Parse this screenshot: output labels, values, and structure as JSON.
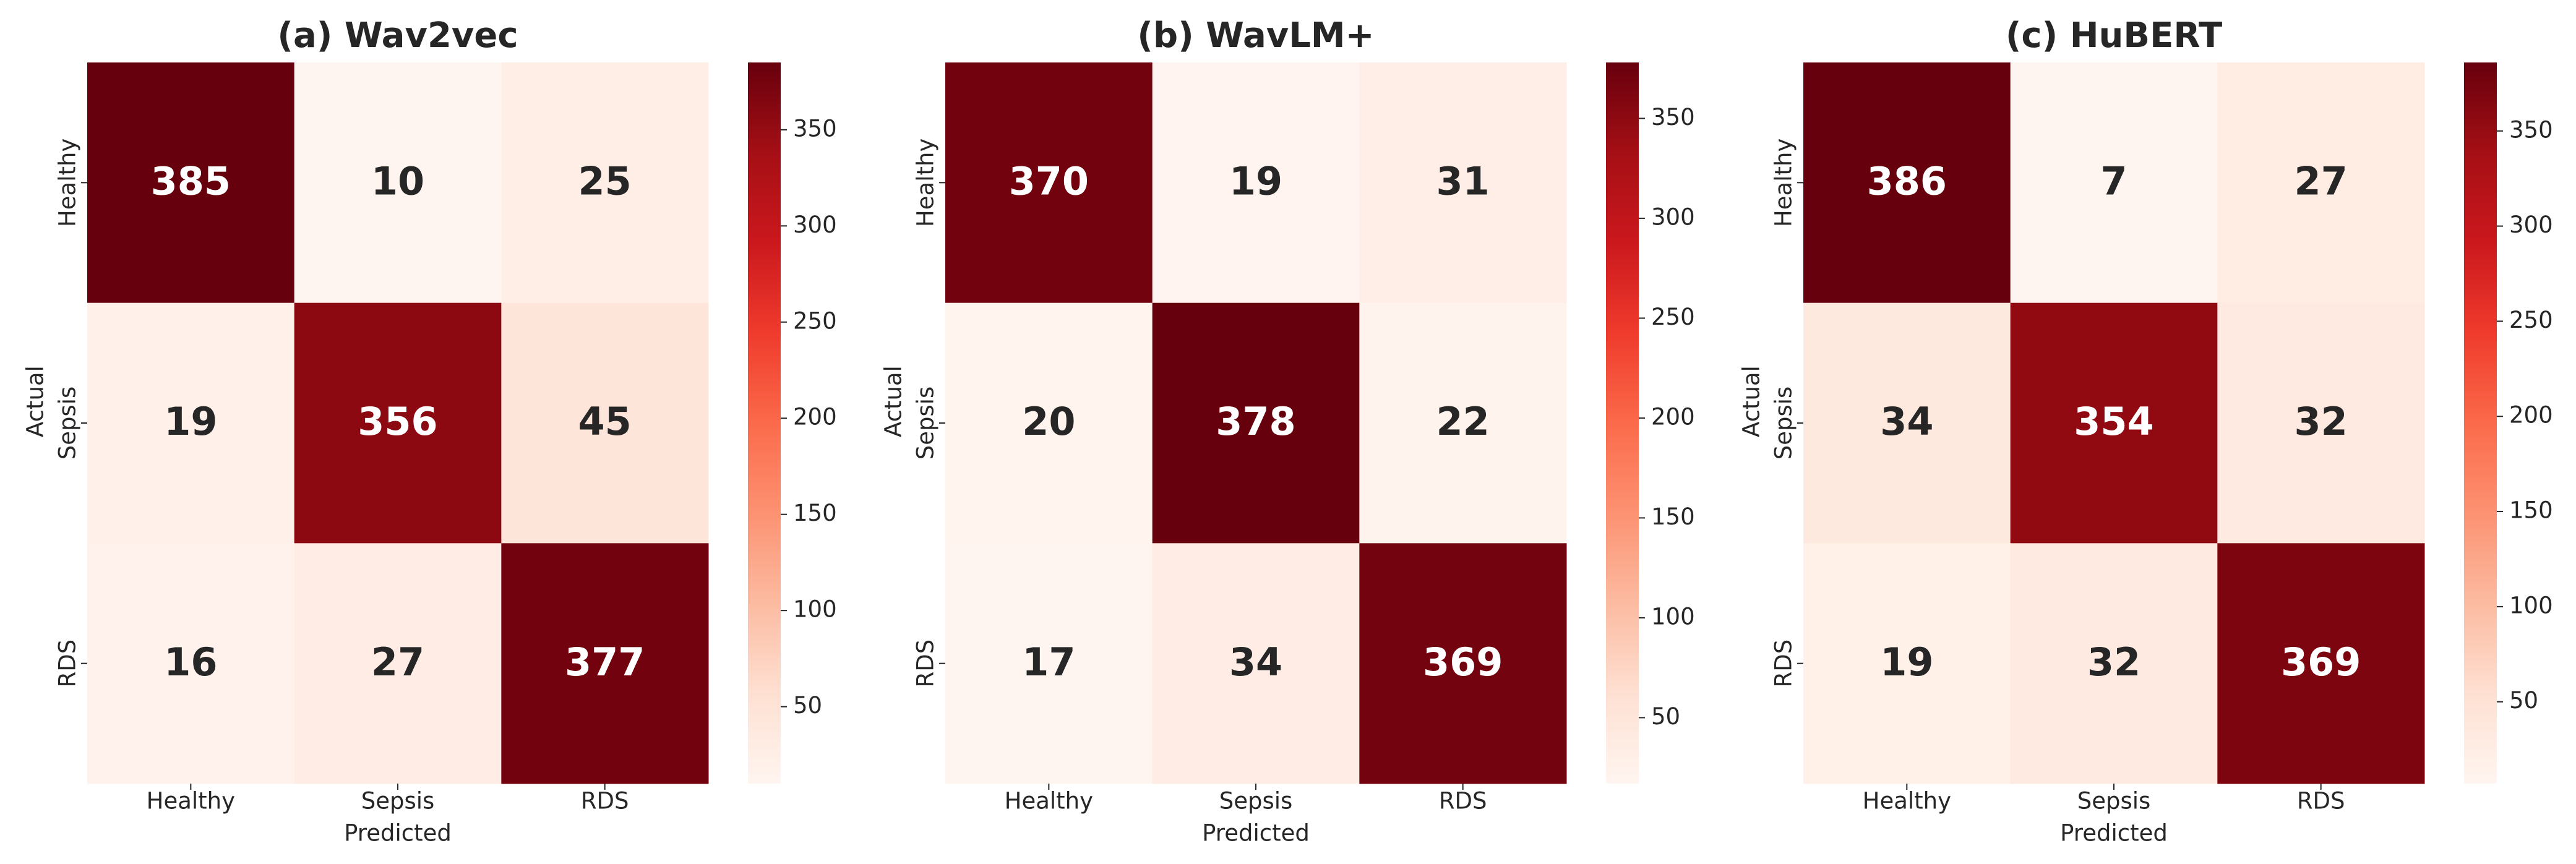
{
  "chart_data": [
    {
      "type": "heatmap",
      "title": "(a) Wav2vec",
      "cmap": "Reds",
      "x_categories": [
        "Healthy",
        "Sepsis",
        "RDS"
      ],
      "y_categories": [
        "Healthy",
        "Sepsis",
        "RDS"
      ],
      "x_label": "Predicted",
      "y_label": "Actual",
      "values": [
        [
          385,
          10,
          25
        ],
        [
          19,
          356,
          45
        ],
        [
          16,
          27,
          377
        ]
      ],
      "clim": [
        10,
        385
      ],
      "cticks": [
        50,
        100,
        150,
        200,
        250,
        300,
        350
      ]
    },
    {
      "type": "heatmap",
      "title": "(b) WavLM+",
      "cmap": "Reds",
      "x_categories": [
        "Healthy",
        "Sepsis",
        "RDS"
      ],
      "y_categories": [
        "Healthy",
        "Sepsis",
        "RDS"
      ],
      "x_label": "Predicted",
      "y_label": "Actual",
      "values": [
        [
          370,
          19,
          31
        ],
        [
          20,
          378,
          22
        ],
        [
          17,
          34,
          369
        ]
      ],
      "clim": [
        17,
        378
      ],
      "cticks": [
        50,
        100,
        150,
        200,
        250,
        300,
        350
      ]
    },
    {
      "type": "heatmap",
      "title": "(c) HuBERT",
      "cmap": "Reds",
      "x_categories": [
        "Healthy",
        "Sepsis",
        "RDS"
      ],
      "y_categories": [
        "Healthy",
        "Sepsis",
        "RDS"
      ],
      "x_label": "Predicted",
      "y_label": "Actual",
      "values": [
        [
          386,
          7,
          27
        ],
        [
          34,
          354,
          32
        ],
        [
          19,
          32,
          369
        ]
      ],
      "clim": [
        7,
        386
      ],
      "cticks": [
        50,
        100,
        150,
        200,
        250,
        300,
        350
      ]
    }
  ]
}
